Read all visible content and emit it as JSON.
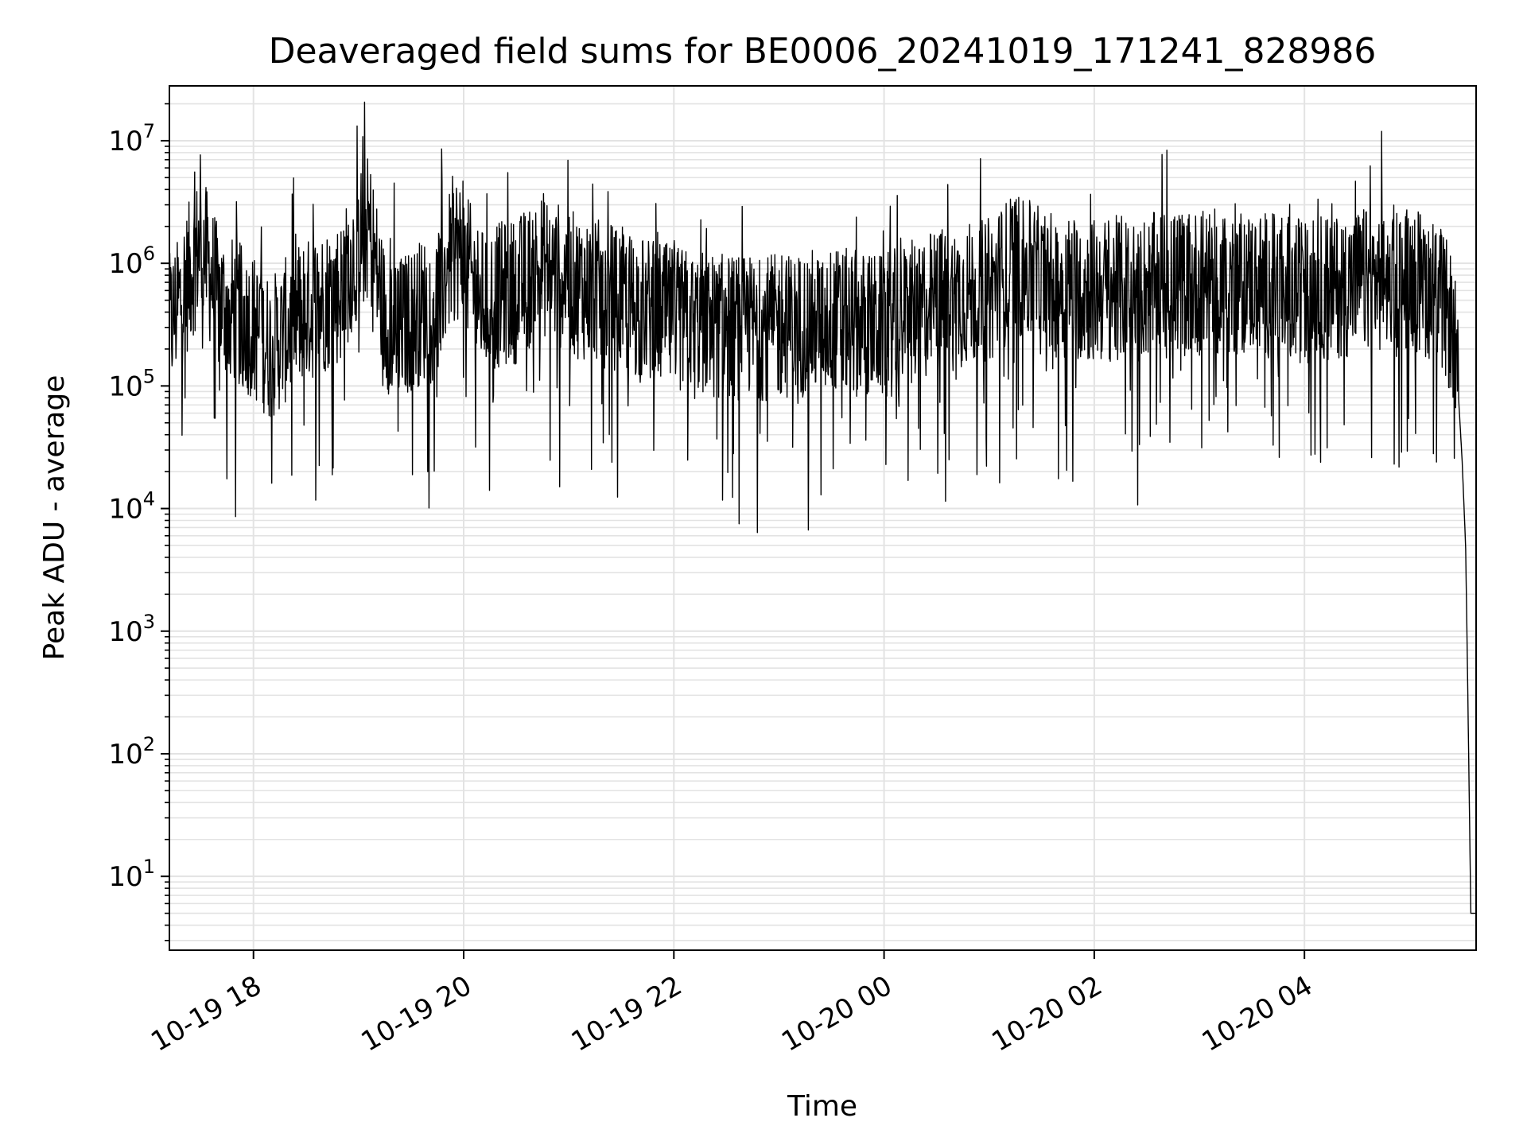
{
  "chart_data": {
    "type": "line",
    "title": "Deaveraged field sums for BE0006_20241019_171241_828986",
    "xlabel": "Time",
    "ylabel": "Peak ADU - average",
    "yscale": "log",
    "xlim": [
      "2024-10-19 17:12",
      "2024-10-20 05:38"
    ],
    "ylim": [
      2.5,
      28000000
    ],
    "grid": true,
    "line_color": "#000000",
    "grid_color": "#e3e3e3",
    "x_ticks": [
      {
        "label": "10-19 18",
        "t": "2024-10-19 18:00"
      },
      {
        "label": "10-19 20",
        "t": "2024-10-19 20:00"
      },
      {
        "label": "10-19 22",
        "t": "2024-10-19 22:00"
      },
      {
        "label": "10-20 00",
        "t": "2024-10-20 00:00"
      },
      {
        "label": "10-20 02",
        "t": "2024-10-20 02:00"
      },
      {
        "label": "10-20 04",
        "t": "2024-10-20 04:00"
      }
    ],
    "y_ticks": [
      {
        "base": "10",
        "exp": "1",
        "value": 10
      },
      {
        "base": "10",
        "exp": "2",
        "value": 100
      },
      {
        "base": "10",
        "exp": "3",
        "value": 1000
      },
      {
        "base": "10",
        "exp": "4",
        "value": 10000
      },
      {
        "base": "10",
        "exp": "5",
        "value": 100000
      },
      {
        "base": "10",
        "exp": "6",
        "value": 1000000
      },
      {
        "base": "10",
        "exp": "7",
        "value": 10000000
      }
    ],
    "series": [
      {
        "x": [
          "2024-10-19 17:12",
          "2024-10-19 17:20",
          "2024-10-19 17:30",
          "2024-10-19 17:40",
          "2024-10-19 17:50",
          "2024-10-19 18:00",
          "2024-10-19 18:10",
          "2024-10-19 18:20",
          "2024-10-19 18:30",
          "2024-10-19 18:40",
          "2024-10-19 18:50",
          "2024-10-19 19:00",
          "2024-10-19 19:06",
          "2024-10-19 19:15",
          "2024-10-19 19:25",
          "2024-10-19 19:35",
          "2024-10-19 19:45",
          "2024-10-19 19:55",
          "2024-10-19 20:10",
          "2024-10-19 20:30",
          "2024-10-19 20:45",
          "2024-10-19 21:00",
          "2024-10-19 21:30",
          "2024-10-19 22:00",
          "2024-10-19 22:30",
          "2024-10-19 23:00",
          "2024-10-19 23:30",
          "2024-10-20 00:00",
          "2024-10-20 00:30",
          "2024-10-20 01:00",
          "2024-10-20 01:15",
          "2024-10-20 01:30",
          "2024-10-20 02:00",
          "2024-10-20 02:30",
          "2024-10-20 03:00",
          "2024-10-20 03:30",
          "2024-10-20 04:00",
          "2024-10-20 04:30",
          "2024-10-20 05:00",
          "2024-10-20 05:15",
          "2024-10-20 05:25",
          "2024-10-20 05:28",
          "2024-10-20 05:30",
          "2024-10-20 05:32",
          "2024-10-20 05:33",
          "2024-10-20 05:35",
          "2024-10-20 05:38"
        ],
        "values": [
          300000,
          600000,
          1500000,
          500000,
          400000,
          300000,
          200000,
          300000,
          400000,
          500000,
          600000,
          1500000,
          2000000,
          350000,
          300000,
          400000,
          500000,
          1500000,
          500000,
          600000,
          1000000,
          700000,
          500000,
          350000,
          300000,
          300000,
          350000,
          300000,
          500000,
          600000,
          1000000,
          700000,
          600000,
          650000,
          700000,
          700000,
          600000,
          700000,
          800000,
          600000,
          300000,
          80000,
          25000,
          5000,
          600,
          5,
          5
        ]
      }
    ]
  }
}
